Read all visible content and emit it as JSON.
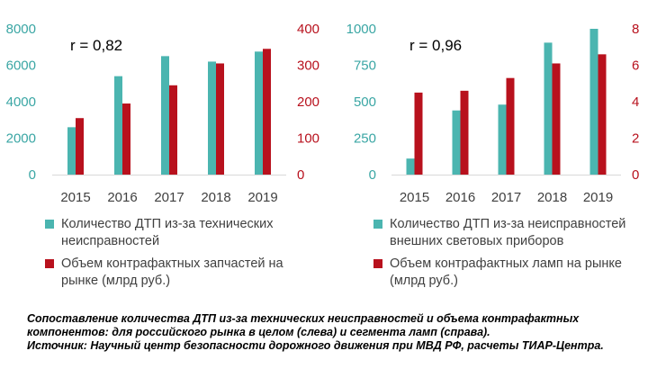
{
  "colors": {
    "teal": "#4bb5b0",
    "red": "#b8111d",
    "tealText": "#3aa6a4",
    "redText": "#b8111d"
  },
  "chart_data": [
    {
      "type": "bar",
      "categories": [
        "2015",
        "2016",
        "2017",
        "2018",
        "2019"
      ],
      "series": [
        {
          "name": "Количество ДТП из-за технических неисправностей",
          "axis": "left",
          "color": "#4bb5b0",
          "values": [
            2600,
            5400,
            6500,
            6200,
            6750
          ]
        },
        {
          "name": "Объем контрафактных запчастей на рынке (млрд руб.)",
          "axis": "right",
          "color": "#b8111d",
          "values": [
            155,
            195,
            245,
            305,
            345
          ]
        }
      ],
      "left_axis": {
        "ylim": [
          0,
          8000
        ],
        "ticks": [
          "0",
          "2000",
          "4000",
          "6000",
          "8000"
        ]
      },
      "right_axis": {
        "ylim": [
          0,
          400
        ],
        "ticks": [
          "0",
          "100",
          "200",
          "300",
          "400"
        ]
      },
      "annotation": "r = 0,82",
      "legend": "bottom"
    },
    {
      "type": "bar",
      "categories": [
        "2015",
        "2016",
        "2017",
        "2018",
        "2019"
      ],
      "series": [
        {
          "name": "Количество ДТП из-за неисправностей внешних световых приборов",
          "axis": "left",
          "color": "#4bb5b0",
          "values": [
            110,
            440,
            480,
            905,
            1000
          ]
        },
        {
          "name": "Объем контрафактных ламп на рынке (млрд руб.)",
          "axis": "right",
          "color": "#b8111d",
          "values": [
            4.5,
            4.6,
            5.3,
            6.1,
            6.6
          ]
        }
      ],
      "left_axis": {
        "ylim": [
          0,
          1000
        ],
        "ticks": [
          "0",
          "250",
          "500",
          "750",
          "1000"
        ]
      },
      "right_axis": {
        "ylim": [
          0,
          8
        ],
        "ticks": [
          "0",
          "2",
          "4",
          "6",
          "8"
        ]
      },
      "annotation": "r = 0,96",
      "legend": "bottom"
    }
  ],
  "legend_left": [
    {
      "label": "Количество ДТП из-за технических неисправностей",
      "color": "#4bb5b0"
    },
    {
      "label": "Объем контрафактных запчастей на рынке (млрд руб.)",
      "color": "#b8111d"
    }
  ],
  "legend_right": [
    {
      "label": "Количество ДТП из-за неисправностей внешних световых приборов",
      "color": "#4bb5b0"
    },
    {
      "label": "Объем контрафактных ламп на рынке (млрд руб.)",
      "color": "#b8111d"
    }
  ],
  "caption": {
    "line1": "Сопоставление количества ДТП из-за технических неисправностей и объема контрафактных компонентов: для российского рынка в целом (слева) и сегмента ламп (справа).",
    "line2": "Источник: Научный центр безопасности дорожного движения при МВД РФ, расчеты ТИАР-Центра."
  }
}
